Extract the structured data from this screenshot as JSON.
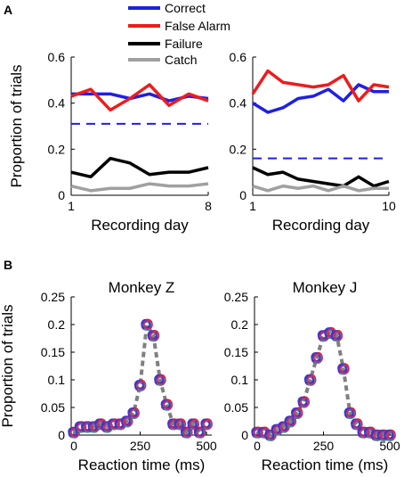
{
  "panel_labels": [
    "A",
    "B"
  ],
  "legend": {
    "placement": "top-center",
    "entries": [
      {
        "label": "Correct",
        "color": "#1f1fe6"
      },
      {
        "label": "False Alarm",
        "color": "#ee1c1c"
      },
      {
        "label": "Failure",
        "color": "#000000"
      },
      {
        "label": "Catch",
        "color": "#a0a0a0"
      }
    ]
  },
  "colors": {
    "correct": "#1f1fe6",
    "false_alarm": "#ee1c1c",
    "failure": "#000000",
    "catch": "#a0a0a0",
    "dashed": "#1f1fe6",
    "fit": "#808080",
    "points": [
      "#1f1fe6",
      "#ee1c1c",
      "#7a1fa0",
      "#2aa198",
      "#3a3ad0",
      "#c0307a"
    ]
  },
  "chart_data": [
    {
      "type": "line",
      "panel": "A",
      "xlabel": "Recording day",
      "ylabel": "Proportion of trials",
      "xlim": [
        1,
        8
      ],
      "ylim": [
        0,
        0.6
      ],
      "xticks": [
        "1",
        "8"
      ],
      "xtick_values": [
        1,
        8
      ],
      "yticks": [
        "0",
        "0.2",
        "0.4",
        "0.6"
      ],
      "ytick_values": [
        0,
        0.2,
        0.4,
        0.6
      ],
      "x": [
        1,
        2,
        3,
        4,
        5,
        6,
        7,
        8
      ],
      "series": [
        {
          "name": "Correct",
          "color": "#1f1fe6",
          "values": [
            0.44,
            0.44,
            0.44,
            0.42,
            0.44,
            0.41,
            0.43,
            0.42
          ]
        },
        {
          "name": "False Alarm",
          "color": "#ee1c1c",
          "values": [
            0.43,
            0.46,
            0.37,
            0.42,
            0.48,
            0.39,
            0.44,
            0.41
          ]
        },
        {
          "name": "Failure",
          "color": "#000000",
          "values": [
            0.1,
            0.08,
            0.16,
            0.14,
            0.09,
            0.1,
            0.1,
            0.12
          ]
        },
        {
          "name": "Catch",
          "color": "#a0a0a0",
          "values": [
            0.04,
            0.02,
            0.03,
            0.03,
            0.05,
            0.04,
            0.04,
            0.05
          ]
        }
      ],
      "dashed_line": {
        "y": 0.31,
        "color": "#1f1fe6"
      }
    },
    {
      "type": "line",
      "panel": "A",
      "xlabel": "Recording day",
      "ylabel": "",
      "xlim": [
        1,
        10
      ],
      "ylim": [
        0,
        0.6
      ],
      "xticks": [
        "1",
        "10"
      ],
      "xtick_values": [
        1,
        10
      ],
      "yticks": [
        "0",
        "0.2",
        "0.4",
        "0.6"
      ],
      "ytick_values": [
        0,
        0.2,
        0.4,
        0.6
      ],
      "x": [
        1,
        2,
        3,
        4,
        5,
        6,
        7,
        8,
        9,
        10
      ],
      "series": [
        {
          "name": "Correct",
          "color": "#1f1fe6",
          "values": [
            0.4,
            0.36,
            0.38,
            0.42,
            0.43,
            0.46,
            0.41,
            0.48,
            0.45,
            0.45
          ]
        },
        {
          "name": "False Alarm",
          "color": "#ee1c1c",
          "values": [
            0.44,
            0.54,
            0.49,
            0.48,
            0.47,
            0.48,
            0.52,
            0.41,
            0.48,
            0.47
          ]
        },
        {
          "name": "Failure",
          "color": "#000000",
          "values": [
            0.12,
            0.09,
            0.1,
            0.07,
            0.06,
            0.05,
            0.04,
            0.08,
            0.04,
            0.06
          ]
        },
        {
          "name": "Catch",
          "color": "#a0a0a0",
          "values": [
            0.04,
            0.02,
            0.04,
            0.03,
            0.04,
            0.02,
            0.04,
            0.02,
            0.03,
            0.03
          ]
        }
      ],
      "dashed_line": {
        "y": 0.16,
        "color": "#1f1fe6"
      }
    },
    {
      "type": "scatter",
      "panel": "B",
      "title": "Monkey Z",
      "xlabel": "Reaction time (ms)",
      "ylabel": "Proportion of trials",
      "xlim": [
        -10,
        520
      ],
      "ylim": [
        0,
        0.25
      ],
      "xticks": [
        "0",
        "250",
        "500"
      ],
      "xtick_values": [
        0,
        250,
        500
      ],
      "yticks": [
        "0",
        "0.05",
        "0.1",
        "0.15",
        "0.2",
        "0.25"
      ],
      "ytick_values": [
        0,
        0.05,
        0.1,
        0.15,
        0.2,
        0.25
      ],
      "x": [
        0,
        25,
        50,
        75,
        100,
        125,
        150,
        175,
        200,
        225,
        250,
        275,
        300,
        325,
        350,
        375,
        400,
        425,
        450,
        475,
        500
      ],
      "values": [
        0.005,
        0.015,
        0.015,
        0.015,
        0.02,
        0.015,
        0.02,
        0.02,
        0.025,
        0.04,
        0.09,
        0.2,
        0.18,
        0.1,
        0.055,
        0.02,
        0.02,
        0.005,
        0.02,
        0.005,
        0.02
      ],
      "fit": [
        0.005,
        0.015,
        0.015,
        0.015,
        0.02,
        0.015,
        0.02,
        0.02,
        0.025,
        0.04,
        0.09,
        0.2,
        0.18,
        0.1,
        0.055,
        0.02,
        0.02,
        0.005,
        0.02,
        0.005,
        0.02
      ]
    },
    {
      "type": "scatter",
      "panel": "B",
      "title": "Monkey J",
      "xlabel": "Reaction time (ms)",
      "ylabel": "",
      "xlim": [
        -10,
        520
      ],
      "ylim": [
        0,
        0.25
      ],
      "xticks": [
        "0",
        "250",
        "500"
      ],
      "xtick_values": [
        0,
        250,
        500
      ],
      "yticks": [
        "0",
        "0.05",
        "0.1",
        "0.15",
        "0.2",
        "0.25"
      ],
      "ytick_values": [
        0,
        0.05,
        0.1,
        0.15,
        0.2,
        0.25
      ],
      "x": [
        0,
        25,
        50,
        75,
        100,
        125,
        150,
        175,
        200,
        225,
        250,
        275,
        300,
        325,
        350,
        375,
        400,
        425,
        450,
        475,
        500
      ],
      "values": [
        0.005,
        0.005,
        0.0,
        0.01,
        0.015,
        0.025,
        0.04,
        0.06,
        0.1,
        0.14,
        0.18,
        0.185,
        0.18,
        0.12,
        0.04,
        0.02,
        0.005,
        0.005,
        0.0,
        0.0,
        0.0
      ],
      "fit": [
        0.005,
        0.005,
        0.0,
        0.01,
        0.015,
        0.025,
        0.04,
        0.06,
        0.1,
        0.14,
        0.18,
        0.185,
        0.18,
        0.12,
        0.04,
        0.02,
        0.005,
        0.005,
        0.0,
        0.0,
        0.0
      ]
    }
  ]
}
